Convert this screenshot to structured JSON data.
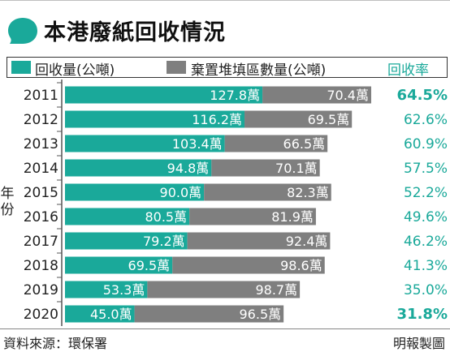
{
  "title": "本港廢紙回收情況",
  "legend": {
    "recycled": "回收量(公噸)",
    "landfill": "棄置堆填區數量(公噸)",
    "rate": "回收率"
  },
  "y_axis_label": "年份",
  "source": "資料來源：環保署",
  "credit": "明報製圖",
  "colors": {
    "recycled": "#1aa99a",
    "landfill": "#7f7f7f",
    "rate": "#1aa99a",
    "text": "#222222"
  },
  "chart_data": {
    "type": "bar",
    "orientation": "horizontal",
    "stacked": true,
    "categories": [
      "2011",
      "2012",
      "2013",
      "2014",
      "2015",
      "2016",
      "2017",
      "2018",
      "2019",
      "2020"
    ],
    "series": [
      {
        "name": "回收量(公噸)",
        "values": [
          127.8,
          116.2,
          103.4,
          94.8,
          90.0,
          80.5,
          79.2,
          69.5,
          53.3,
          45.0
        ],
        "labels": [
          "127.8萬",
          "116.2萬",
          "103.4萬",
          "94.8萬",
          "90.0萬",
          "80.5萬",
          "79.2萬",
          "69.5萬",
          "53.3萬",
          "45.0萬"
        ]
      },
      {
        "name": "棄置堆填區數量(公噸)",
        "values": [
          70.4,
          69.5,
          66.5,
          70.1,
          82.3,
          81.9,
          92.4,
          98.6,
          98.7,
          96.5
        ],
        "labels": [
          "70.4萬",
          "69.5萬",
          "66.5萬",
          "70.1萬",
          "82.3萬",
          "81.9萬",
          "92.4萬",
          "98.6萬",
          "98.7萬",
          "96.5萬"
        ]
      }
    ],
    "rate": {
      "name": "回收率",
      "labels": [
        "64.5%",
        "62.6%",
        "60.9%",
        "57.5%",
        "52.2%",
        "49.6%",
        "46.2%",
        "41.3%",
        "35.0%",
        "31.8%"
      ],
      "emphasized": [
        "2011",
        "2020"
      ]
    },
    "xlim": [
      0,
      198.2
    ],
    "legend_position": "top",
    "grid": false
  }
}
